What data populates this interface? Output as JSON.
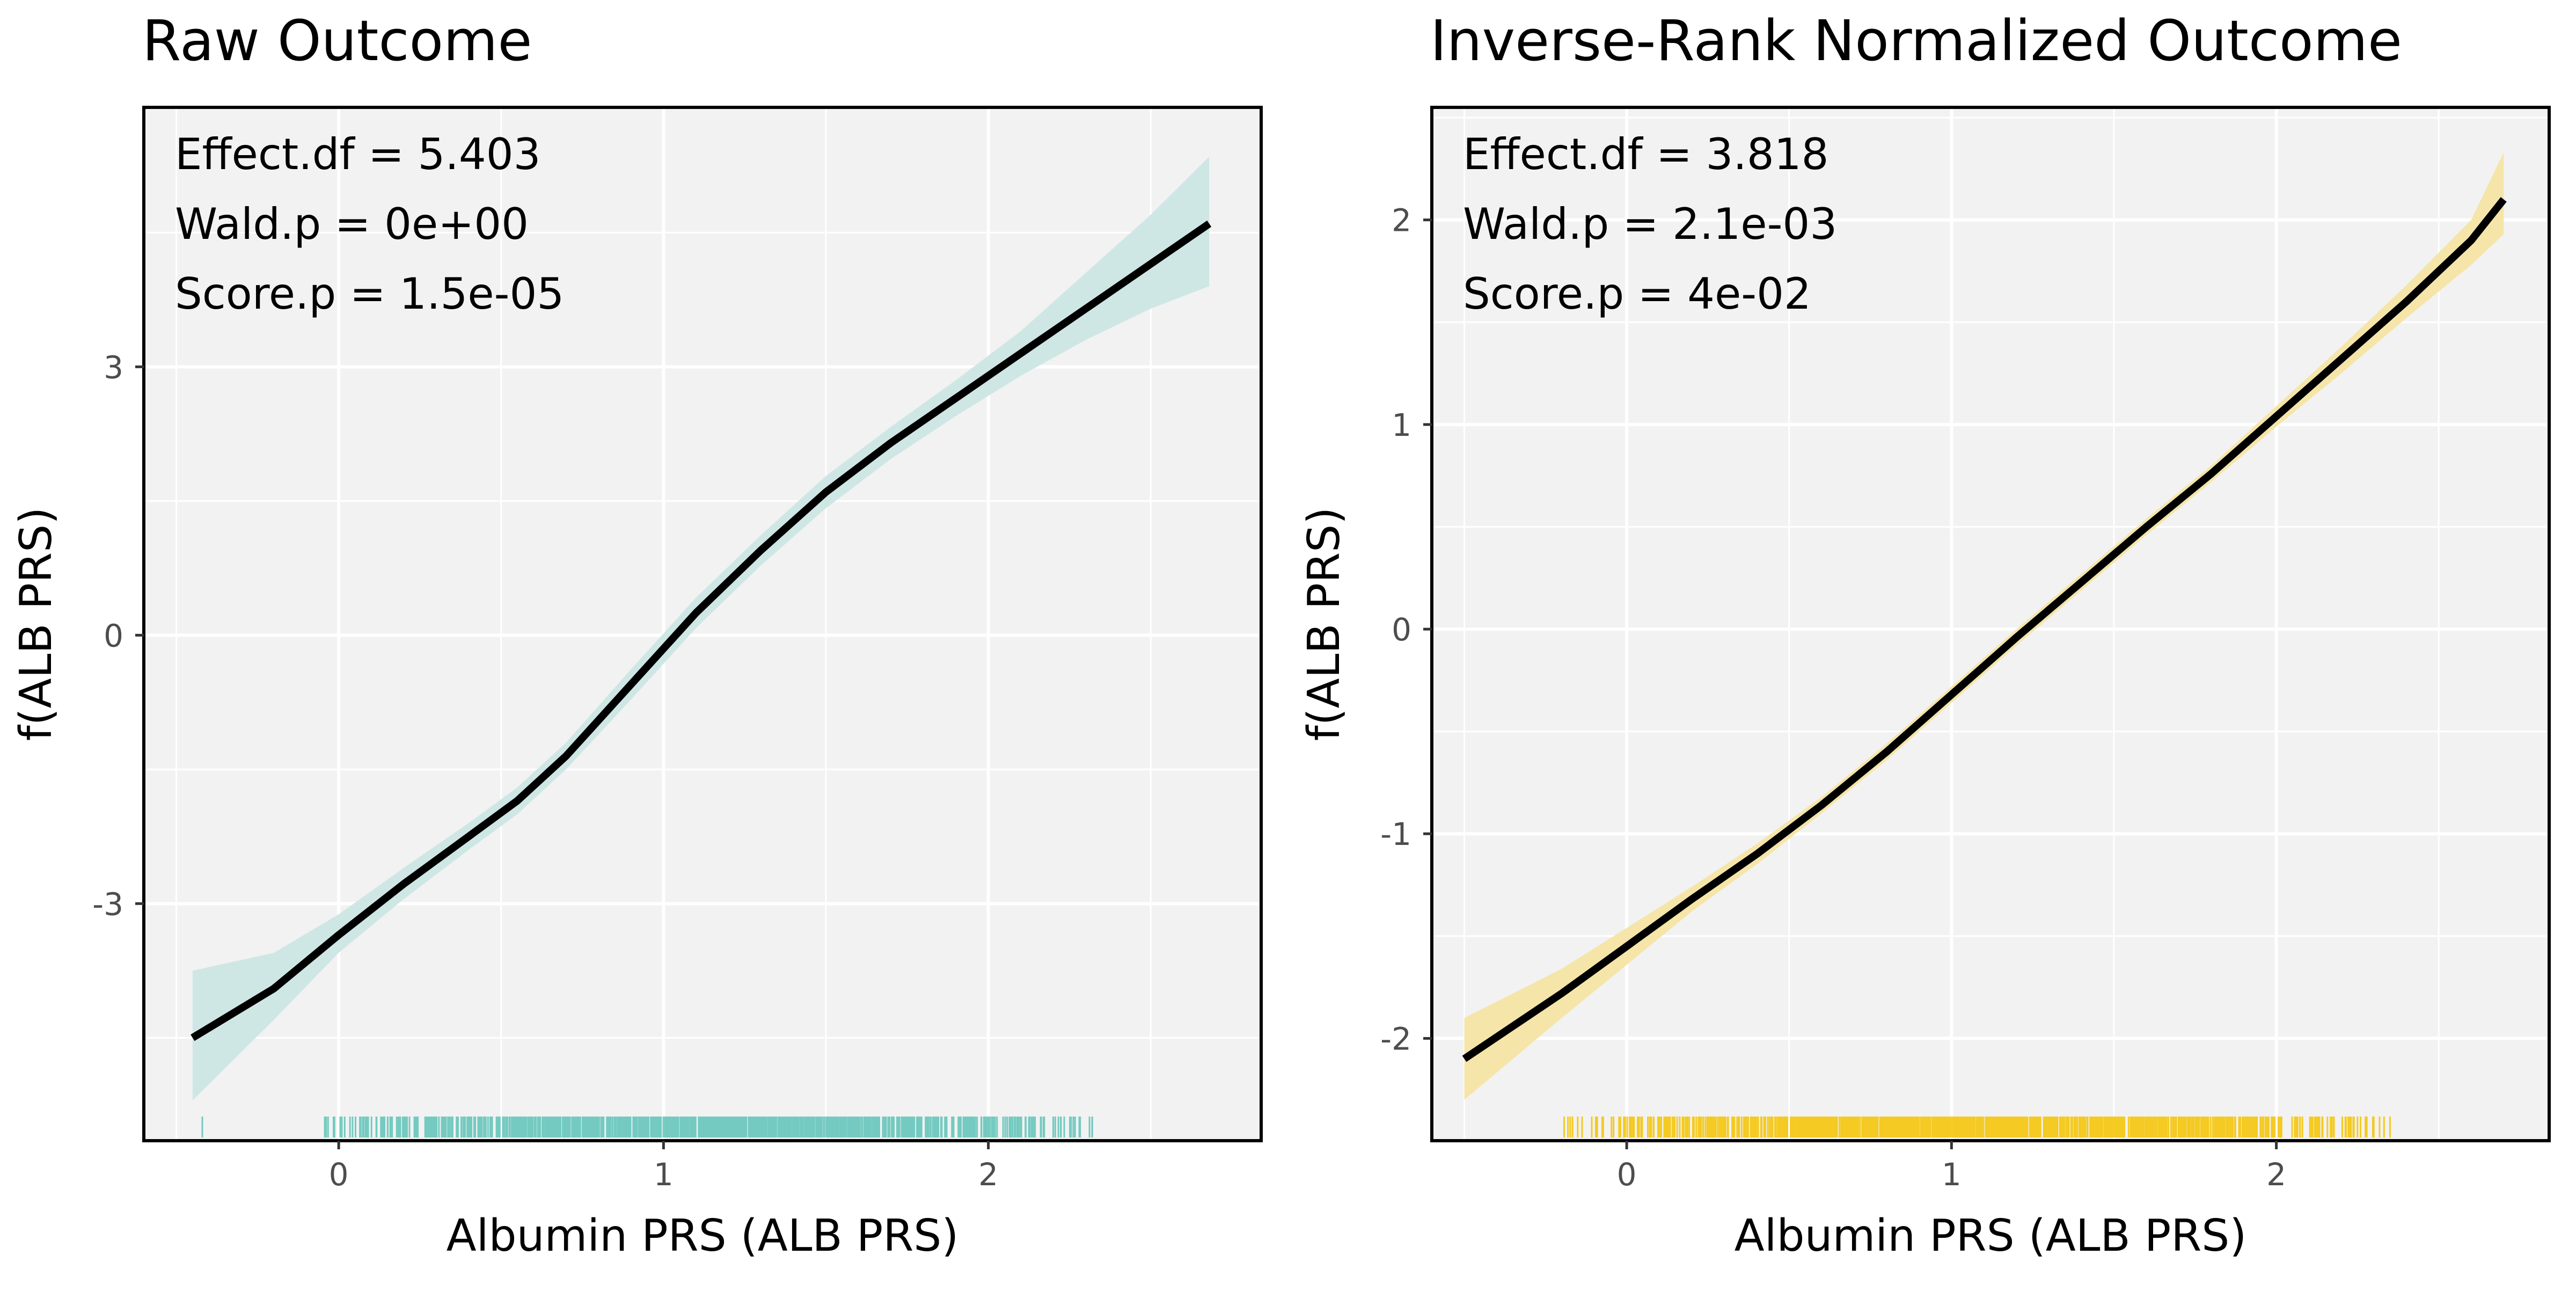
{
  "chart_data": [
    {
      "type": "line",
      "title": "Raw Outcome",
      "xlabel": "Albumin PRS (ALB PRS)",
      "ylabel": "f(ALB PRS)",
      "xlim": [
        -0.6,
        2.84
      ],
      "ylim": [
        -5.65,
        5.9
      ],
      "x_ticks": [
        0,
        1,
        2
      ],
      "x_tick_labels": [
        "0",
        "1",
        "2"
      ],
      "y_ticks": [
        -3,
        0,
        3
      ],
      "y_tick_labels": [
        "-3",
        "0",
        "3"
      ],
      "grid": true,
      "annotations": [
        "Effect.df = 5.403",
        "Wald.p = 0e+00",
        "Score.p = 1.5e-05"
      ],
      "colors": {
        "band": "#cfe7e4",
        "rug": "#5fc4b8",
        "line": "#000000",
        "panel": "#f2f2f2"
      },
      "series": [
        {
          "x": [
            -0.45,
            -0.2,
            0.0,
            0.2,
            0.4,
            0.55,
            0.7,
            0.9,
            1.1,
            1.3,
            1.5,
            1.7,
            1.9,
            2.1,
            2.3,
            2.5,
            2.68
          ],
          "y": [
            -4.5,
            -3.95,
            -3.35,
            -2.78,
            -2.25,
            -1.85,
            -1.35,
            -0.55,
            0.25,
            0.95,
            1.6,
            2.15,
            2.65,
            3.15,
            3.65,
            4.15,
            4.6
          ],
          "lower": [
            -5.2,
            -4.3,
            -3.55,
            -2.95,
            -2.4,
            -2.0,
            -1.5,
            -0.72,
            0.08,
            0.78,
            1.42,
            1.97,
            2.45,
            2.9,
            3.3,
            3.65,
            3.9
          ],
          "upper": [
            -3.75,
            -3.55,
            -3.12,
            -2.6,
            -2.1,
            -1.7,
            -1.2,
            -0.38,
            0.42,
            1.12,
            1.78,
            2.33,
            2.85,
            3.4,
            4.05,
            4.7,
            5.35
          ]
        }
      ],
      "rug": {
        "min": -0.05,
        "max": 2.32,
        "outliers": [
          -0.42,
          2.2,
          2.28,
          2.32
        ]
      }
    },
    {
      "type": "line",
      "title": "Inverse-Rank Normalized Outcome",
      "xlabel": "Albumin PRS (ALB PRS)",
      "ylabel": "f(ALB PRS)",
      "xlim": [
        -0.6,
        2.84
      ],
      "ylim": [
        -2.5,
        2.55
      ],
      "x_ticks": [
        0,
        1,
        2
      ],
      "x_tick_labels": [
        "0",
        "1",
        "2"
      ],
      "y_ticks": [
        -2,
        -1,
        0,
        1,
        2
      ],
      "y_tick_labels": [
        "-2",
        "-1",
        "0",
        "1",
        "2"
      ],
      "grid": true,
      "annotations": [
        "Effect.df = 3.818",
        "Wald.p = 2.1e-03",
        "Score.p = 4e-02"
      ],
      "colors": {
        "band": "#f5e5a8",
        "rug": "#f5c400",
        "line": "#000000",
        "panel": "#f2f2f2"
      },
      "series": [
        {
          "x": [
            -0.5,
            -0.2,
            0.0,
            0.2,
            0.4,
            0.6,
            0.8,
            1.0,
            1.2,
            1.4,
            1.6,
            1.8,
            2.0,
            2.2,
            2.4,
            2.6,
            2.7
          ],
          "y": [
            -2.1,
            -1.78,
            -1.55,
            -1.32,
            -1.1,
            -0.86,
            -0.6,
            -0.32,
            -0.04,
            0.23,
            0.5,
            0.76,
            1.04,
            1.32,
            1.6,
            1.9,
            2.1
          ],
          "lower": [
            -2.3,
            -1.9,
            -1.64,
            -1.38,
            -1.15,
            -0.9,
            -0.64,
            -0.36,
            -0.08,
            0.19,
            0.46,
            0.72,
            0.99,
            1.25,
            1.52,
            1.78,
            1.93
          ],
          "upper": [
            -1.9,
            -1.66,
            -1.46,
            -1.26,
            -1.05,
            -0.82,
            -0.56,
            -0.28,
            0.0,
            0.27,
            0.54,
            0.8,
            1.09,
            1.38,
            1.68,
            2.0,
            2.33
          ]
        }
      ],
      "rug": {
        "min": -0.2,
        "max": 2.35,
        "outliers": [
          2.25,
          2.3,
          2.35
        ]
      }
    }
  ]
}
